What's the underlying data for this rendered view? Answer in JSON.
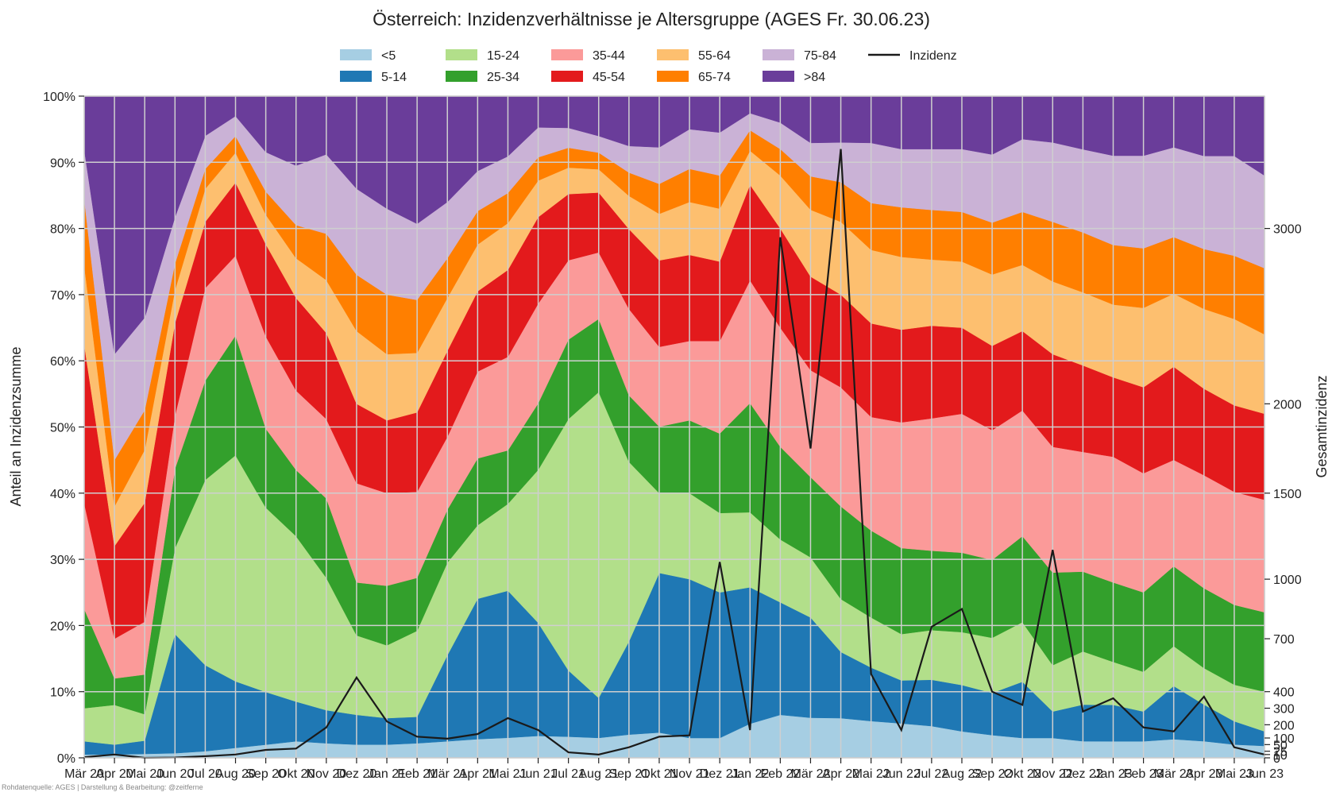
{
  "chart_data": {
    "type": "area",
    "stacked": true,
    "normalized": true,
    "title": "Österreich: Inzidenzverhältnisse je Altersgruppe (AGES Fr. 30.06.23)",
    "ylabel_left": "Anteil an Inzidenzsumme",
    "ylabel_right": "Gesamtinzidenz",
    "source_note": "Rohdatenquelle: AGES | Darstellung & Bearbeitung: @zeitferne",
    "grid": true,
    "legend_position": "top-center",
    "x_ticks": [
      "Mär 20",
      "Apr 20",
      "Mai 20",
      "Jun 20",
      "Jul 20",
      "Aug 20",
      "Sep 20",
      "Okt 20",
      "Nov 20",
      "Dez 20",
      "Jan 21",
      "Feb 21",
      "Mär 21",
      "Apr 21",
      "Mai 21",
      "Jun 21",
      "Jul 21",
      "Aug 21",
      "Sep 21",
      "Okt 21",
      "Nov 21",
      "Dez 21",
      "Jan 22",
      "Feb 22",
      "Mär 22",
      "Apr 22",
      "Mai 22",
      "Jun 22",
      "Jul 22",
      "Aug 22",
      "Sep 22",
      "Okt 22",
      "Nov 22",
      "Dez 22",
      "Jan 23",
      "Feb 23",
      "Mär 23",
      "Apr 23",
      "Mai 23",
      "Jun 23"
    ],
    "y_left_ticks": [
      "0%",
      "10%",
      "20%",
      "30%",
      "40%",
      "50%",
      "60%",
      "70%",
      "80%",
      "90%",
      "100%"
    ],
    "y_right_ticks": [
      {
        "value": 3000,
        "label": "3000"
      },
      {
        "value": 2000,
        "label": "2000"
      },
      {
        "value": 1500,
        "label": "1500"
      },
      {
        "value": 1000,
        "label": "1000"
      },
      {
        "value": 700,
        "label": "700"
      },
      {
        "value": 400,
        "label": "400"
      },
      {
        "value": 300,
        "label": "300"
      },
      {
        "value": 200,
        "label": "200"
      },
      {
        "value": 100,
        "label": "100"
      },
      {
        "value": 50,
        "label": "50"
      },
      {
        "value": 25,
        "label": "25"
      },
      {
        "value": 10,
        "label": "10"
      },
      {
        "value": 0,
        "label": "0"
      }
    ],
    "series": [
      {
        "name": "<5",
        "color": "#a6cee3",
        "values": [
          0.5,
          0.5,
          0.6,
          0.7,
          1.0,
          1.5,
          2.0,
          2.5,
          2.2,
          2.0,
          2.0,
          2.2,
          2.5,
          2.8,
          3.0,
          3.3,
          3.2,
          3.0,
          3.5,
          3.8,
          3.0,
          3.0,
          5.0,
          6.5,
          6.0,
          6.0,
          5.5,
          5.2,
          4.8,
          4.0,
          3.5,
          3.0,
          3.0,
          2.5,
          2.5,
          2.5,
          2.8,
          2.5,
          2.0,
          1.8
        ]
      },
      {
        "name": "5-14",
        "color": "#1f78b4",
        "values": [
          2.0,
          1.5,
          2.0,
          18.0,
          13.0,
          10.0,
          8.0,
          6.0,
          5.0,
          4.5,
          4.0,
          4.0,
          13.0,
          21.0,
          22.0,
          17.0,
          10.0,
          6.0,
          14.0,
          24.0,
          24.0,
          22.0,
          20.0,
          17.0,
          15.0,
          10.0,
          8.0,
          6.5,
          7.0,
          7.0,
          6.5,
          8.5,
          4.0,
          5.5,
          5.5,
          4.5,
          8.0,
          5.5,
          3.5,
          2.2
        ]
      },
      {
        "name": "15-24",
        "color": "#b2df8a",
        "values": [
          5.0,
          6.0,
          4.0,
          13.0,
          28.0,
          34.0,
          28.0,
          25.0,
          20.0,
          12.0,
          11.0,
          13.0,
          14.0,
          11.0,
          13.0,
          23.0,
          38.0,
          46.0,
          27.0,
          12.0,
          13.0,
          12.0,
          11.0,
          9.5,
          9.0,
          8.0,
          7.5,
          7.0,
          7.5,
          8.0,
          8.5,
          9.0,
          7.0,
          8.0,
          6.5,
          6.0,
          6.0,
          5.5,
          5.5,
          6.0
        ]
      },
      {
        "name": "25-34",
        "color": "#33a02c",
        "values": [
          15.0,
          4.0,
          6.0,
          12.0,
          15.0,
          18.0,
          12.0,
          10.0,
          12.0,
          8.0,
          9.0,
          8.0,
          8.0,
          10.0,
          8.0,
          10.0,
          12.0,
          11.0,
          10.0,
          10.0,
          11.0,
          12.0,
          16.0,
          14.0,
          12.0,
          14.0,
          13.0,
          13.0,
          12.0,
          12.0,
          12.0,
          13.0,
          14.0,
          12.0,
          12.0,
          12.0,
          12.0,
          12.0,
          12.0,
          12.0
        ]
      },
      {
        "name": "35-44",
        "color": "#fb9a99",
        "values": [
          16.0,
          6.0,
          8.0,
          8.0,
          14.0,
          12.0,
          14.0,
          12.0,
          12.0,
          15.0,
          14.0,
          13.0,
          11.0,
          13.0,
          14.0,
          15.0,
          12.0,
          10.0,
          13.0,
          12.0,
          12.0,
          14.0,
          18.0,
          18.0,
          16.0,
          18.0,
          17.0,
          19.0,
          20.0,
          21.0,
          20.0,
          19.0,
          19.0,
          18.0,
          19.0,
          18.0,
          16.0,
          17.0,
          17.0,
          17.0
        ]
      },
      {
        "name": "45-54",
        "color": "#e31a1c",
        "values": [
          24.0,
          14.0,
          18.0,
          14.0,
          10.0,
          11.0,
          14.0,
          14.0,
          13.0,
          12.0,
          11.0,
          12.0,
          13.0,
          12.0,
          13.0,
          13.0,
          10.0,
          9.0,
          12.0,
          13.0,
          13.0,
          12.0,
          14.0,
          15.0,
          14.0,
          14.0,
          14.0,
          14.0,
          14.0,
          13.0,
          13.0,
          12.0,
          14.0,
          13.0,
          12.0,
          13.0,
          14.0,
          13.0,
          13.0,
          13.0
        ]
      },
      {
        "name": "55-64",
        "color": "#fdbf6f",
        "values": [
          12.0,
          6.0,
          8.0,
          5.0,
          5.0,
          4.5,
          4.5,
          6.0,
          8.0,
          11.0,
          10.0,
          9.0,
          8.0,
          7.0,
          7.0,
          5.5,
          4.0,
          3.5,
          5.0,
          7.0,
          8.0,
          8.0,
          5.0,
          8.0,
          10.0,
          11.0,
          11.0,
          11.0,
          10.0,
          10.0,
          11.0,
          10.0,
          11.0,
          11.0,
          11.0,
          12.0,
          11.0,
          12.0,
          13.0,
          12.0
        ]
      },
      {
        "name": "65-74",
        "color": "#ff7f00",
        "values": [
          10.0,
          7.0,
          6.0,
          4.0,
          3.0,
          2.5,
          3.5,
          5.0,
          7.0,
          8.5,
          9.0,
          8.0,
          6.0,
          5.0,
          4.5,
          3.5,
          3.0,
          2.5,
          3.5,
          4.5,
          5.0,
          5.0,
          3.0,
          4.0,
          5.0,
          6.0,
          7.0,
          7.5,
          7.5,
          7.5,
          8.0,
          8.0,
          9.0,
          9.0,
          9.0,
          9.0,
          8.5,
          9.0,
          9.5,
          10.0
        ]
      },
      {
        "name": "75-84",
        "color": "#cab2d6",
        "values": [
          7.5,
          16.0,
          14.0,
          7.0,
          5.0,
          3.0,
          6.0,
          9.0,
          12.0,
          13.0,
          13.0,
          11.5,
          8.5,
          6.0,
          5.5,
          4.5,
          3.0,
          2.5,
          4.0,
          5.5,
          6.0,
          6.5,
          2.5,
          4.0,
          5.0,
          6.0,
          9.0,
          8.8,
          9.2,
          9.5,
          10.5,
          11.0,
          12.0,
          12.5,
          13.5,
          14.0,
          13.5,
          14.0,
          15.0,
          14.0
        ]
      },
      {
        "name": ">84",
        "color": "#6a3d9a",
        "values": [
          8.0,
          39.0,
          33.5,
          18.3,
          6.0,
          3.0,
          8.5,
          10.5,
          8.8,
          14.0,
          17.0,
          19.3,
          16.0,
          11.2,
          9.0,
          4.7,
          4.8,
          6.0,
          7.5,
          7.7,
          5.0,
          5.5,
          2.5,
          4.0,
          7.0,
          7.0,
          7.0,
          8.0,
          8.0,
          8.0,
          9.0,
          6.5,
          7.0,
          8.0,
          9.0,
          9.0,
          7.7,
          9.0,
          9.0,
          12.0
        ]
      }
    ],
    "line_series": {
      "name": "Inzidenz",
      "color": "#1a1a1a",
      "axis": "right",
      "values": [
        2,
        10,
        0,
        1,
        5,
        10,
        30,
        35,
        180,
        480,
        220,
        110,
        95,
        130,
        240,
        160,
        20,
        10,
        40,
        110,
        120,
        1100,
        160,
        2950,
        1750,
        3600,
        500,
        160,
        760,
        850,
        400,
        320,
        1170,
        280,
        360,
        180,
        150,
        370,
        40,
        10
      ]
    }
  },
  "legend": {
    "items": [
      {
        "label": "<5",
        "type": "patch",
        "color": "#a6cee3"
      },
      {
        "label": "5-14",
        "type": "patch",
        "color": "#1f78b4"
      },
      {
        "label": "15-24",
        "type": "patch",
        "color": "#b2df8a"
      },
      {
        "label": "25-34",
        "type": "patch",
        "color": "#33a02c"
      },
      {
        "label": "35-44",
        "type": "patch",
        "color": "#fb9a99"
      },
      {
        "label": "45-54",
        "type": "patch",
        "color": "#e31a1c"
      },
      {
        "label": "55-64",
        "type": "patch",
        "color": "#fdbf6f"
      },
      {
        "label": "65-74",
        "type": "patch",
        "color": "#ff7f00"
      },
      {
        "label": "75-84",
        "type": "patch",
        "color": "#cab2d6"
      },
      {
        "label": ">84",
        "type": "patch",
        "color": "#6a3d9a"
      },
      {
        "label": "Inzidenz",
        "type": "line",
        "color": "#1a1a1a"
      }
    ]
  }
}
